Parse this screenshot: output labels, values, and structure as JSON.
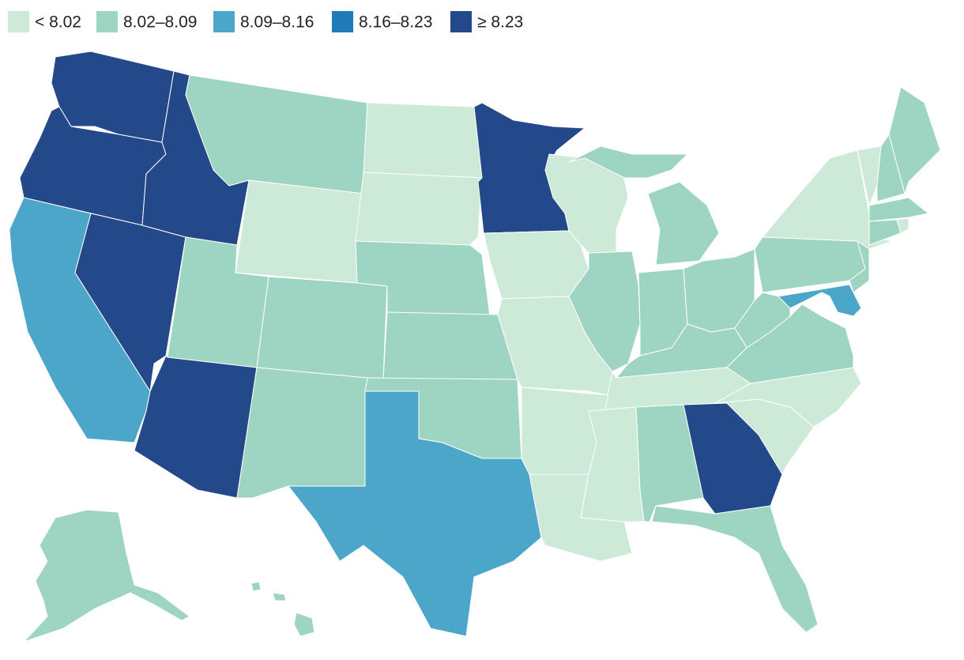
{
  "legend": {
    "items": [
      {
        "label": "< 8.02",
        "color": "#cde9d8"
      },
      {
        "label": "8.02–8.09",
        "color": "#9ed5c2"
      },
      {
        "label": "8.09–8.16",
        "color": "#4ba6c9"
      },
      {
        "label": "8.16–8.23",
        "color": "#207ab8"
      },
      {
        "label": "≥ 8.23",
        "color": "#24498a"
      }
    ]
  }
}
